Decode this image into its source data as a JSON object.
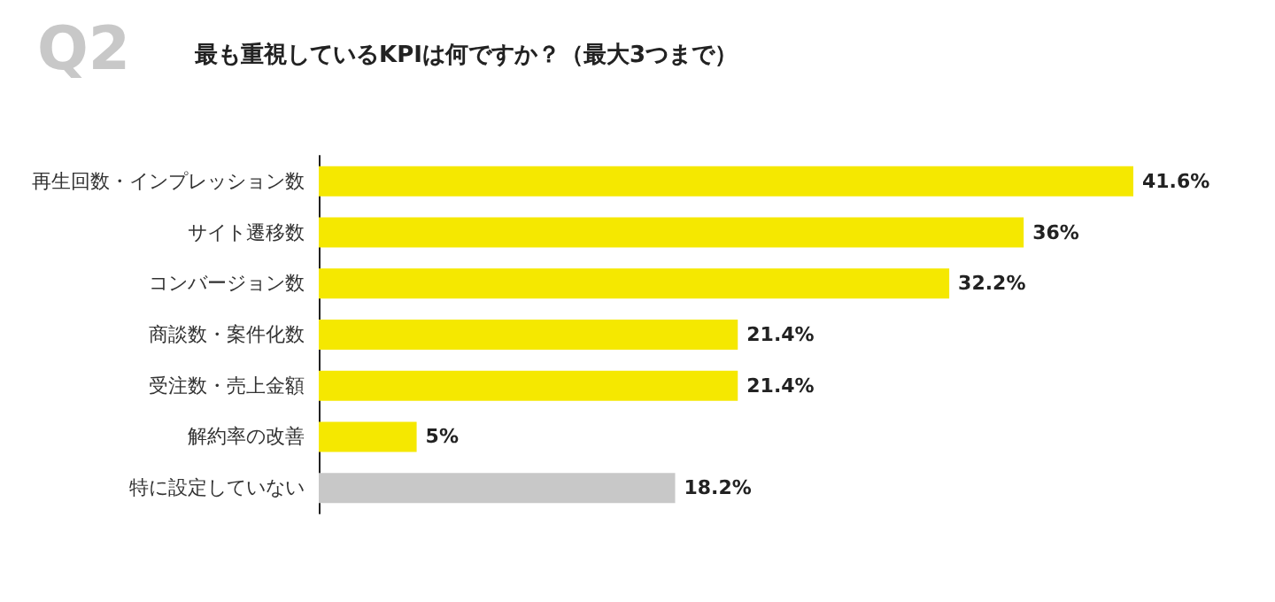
{
  "chart_data": {
    "type": "bar",
    "orientation": "horizontal",
    "title": "Q2",
    "subtitle": "最も重視しているKPIは何ですか？（最大3つまで）",
    "categories": [
      "再生回数・インプレッション数",
      "サイト遷移数",
      "コンバージョン数",
      "商談数・案件化数",
      "受注数・売上金額",
      "解約率の改善",
      "特に設定していない"
    ],
    "values": [
      41.6,
      36,
      32.2,
      21.4,
      21.4,
      5,
      18.2
    ],
    "colors": [
      "#f5e800",
      "#f5e800",
      "#f5e800",
      "#f5e800",
      "#f5e800",
      "#f5e800",
      "#c8c8c8"
    ],
    "value_labels": [
      "41.6%",
      "36%",
      "32.2%",
      "21.4%",
      "21.4%",
      "5%",
      "18.2%"
    ]
  }
}
